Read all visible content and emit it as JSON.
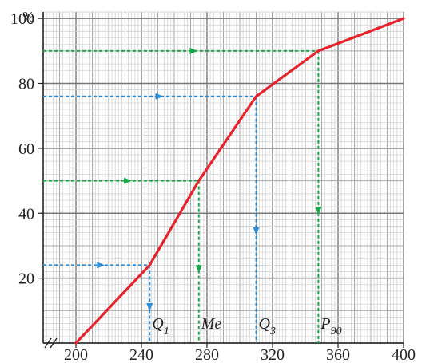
{
  "chart_data": {
    "type": "line",
    "y_unit_label": "%",
    "x_ticks": [
      "200",
      "240",
      "280",
      "320",
      "360",
      "400"
    ],
    "y_ticks": [
      "20",
      "40",
      "60",
      "80",
      "100"
    ],
    "xlim": [
      180,
      400
    ],
    "ylim": [
      0,
      102
    ],
    "grid": true,
    "series": [
      {
        "color": "#e8212b",
        "points": [
          [
            200,
            0
          ],
          [
            245,
            24
          ],
          [
            275,
            50
          ],
          [
            310,
            76
          ],
          [
            348,
            90
          ],
          [
            400,
            100
          ]
        ]
      }
    ],
    "guides": [
      {
        "y": 24,
        "x": 245,
        "color": "#2f8fd6",
        "label": "Q",
        "sub": "1"
      },
      {
        "y": 50,
        "x": 275,
        "color": "#18a84a",
        "label": "Me",
        "sub": ""
      },
      {
        "y": 76,
        "x": 310,
        "color": "#2f8fd6",
        "label": "Q",
        "sub": "3"
      },
      {
        "y": 90,
        "x": 348,
        "color": "#18a84a",
        "label": "P",
        "sub": "90"
      }
    ]
  }
}
